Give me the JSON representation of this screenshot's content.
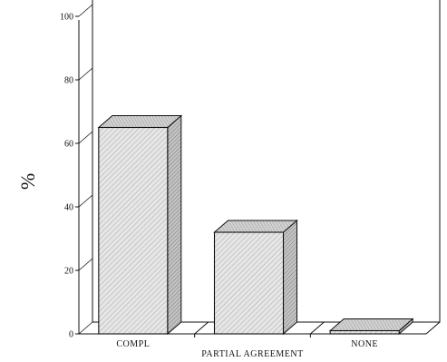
{
  "chart_data": {
    "type": "bar",
    "style": "3d",
    "categories": [
      "COMPL",
      "PARTIAL AGREEMENT",
      "NONE"
    ],
    "values": [
      65,
      32,
      1
    ],
    "ylabel": "%",
    "ylim": [
      0,
      100
    ],
    "yticks": [
      0,
      20,
      40,
      60,
      80,
      100
    ],
    "ytick_labels": [
      "0",
      "20",
      "40",
      "60",
      "80",
      "100"
    ],
    "grid": false,
    "bar_fill": "#d8d8d8",
    "line_color": "#111111"
  }
}
